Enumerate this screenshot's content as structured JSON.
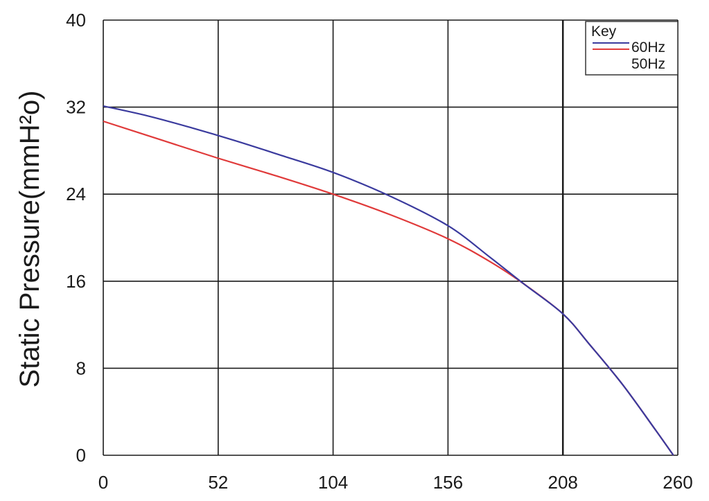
{
  "chart_data": {
    "type": "line",
    "title": "",
    "xlabel": "",
    "ylabel": "Static Pressure(mmH²o)",
    "xlim": [
      0,
      260
    ],
    "ylim": [
      0,
      40
    ],
    "xticks": [
      0,
      52,
      104,
      156,
      208,
      260
    ],
    "yticks": [
      0,
      8,
      16,
      24,
      32,
      40
    ],
    "xtick_labels": [
      "0",
      "52",
      "104",
      "156",
      "208",
      "260"
    ],
    "ytick_labels": [
      "0",
      "8",
      "16",
      "24",
      "32",
      "40"
    ],
    "grid": true,
    "legend": {
      "title": "Key",
      "placement": "top-right"
    },
    "series": [
      {
        "name": "60Hz",
        "color": "#3b3b9e",
        "x": [
          0,
          20,
          40,
          60,
          80,
          104,
          130,
          156,
          175,
          190,
          208,
          220,
          235,
          250,
          258
        ],
        "y": [
          32.1,
          31.2,
          30.1,
          28.9,
          27.6,
          26.0,
          23.8,
          21.1,
          18.2,
          15.8,
          13.0,
          10.2,
          6.5,
          2.3,
          0
        ]
      },
      {
        "name": "50Hz",
        "color": "#e03a3a",
        "x": [
          0,
          26,
          52,
          78,
          104,
          130,
          156,
          175,
          190,
          208,
          220,
          235,
          250,
          258
        ],
        "y": [
          30.7,
          29.0,
          27.3,
          25.7,
          24.0,
          22.1,
          19.9,
          17.8,
          15.8,
          13.0,
          10.2,
          6.5,
          2.3,
          0
        ]
      }
    ]
  }
}
